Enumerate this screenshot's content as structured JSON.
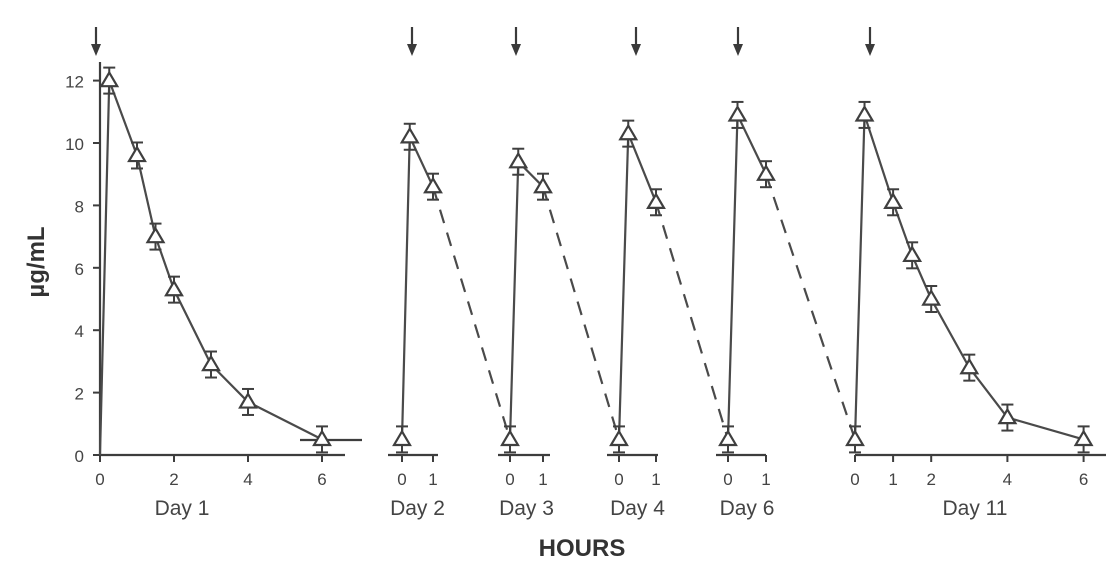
{
  "chart_data": {
    "type": "line",
    "ylabel": "µg/mL",
    "xlabel": "HOURS",
    "ylim": [
      0,
      12.5
    ],
    "yticks": [
      "0",
      "2",
      "4",
      "6",
      "8",
      "10",
      "12"
    ],
    "panels": [
      {
        "label": "Day 1",
        "xticks": [
          "0",
          "2",
          "4",
          "6"
        ],
        "points": [
          {
            "x": 0,
            "y": 0
          },
          {
            "x": 0.25,
            "y": 12.0
          },
          {
            "x": 1,
            "y": 9.6
          },
          {
            "x": 1.5,
            "y": 7.0
          },
          {
            "x": 2,
            "y": 5.3
          },
          {
            "x": 3,
            "y": 2.9
          },
          {
            "x": 4,
            "y": 1.7
          },
          {
            "x": 6,
            "y": 0.5
          }
        ]
      },
      {
        "label": "Day 2",
        "xticks": [
          "0",
          "1"
        ],
        "points": [
          {
            "x": 0,
            "y": 0.5
          },
          {
            "x": 0.25,
            "y": 10.2
          },
          {
            "x": 1,
            "y": 8.6
          }
        ]
      },
      {
        "label": "Day 3",
        "xticks": [
          "0",
          "1"
        ],
        "points": [
          {
            "x": 0,
            "y": 0.5
          },
          {
            "x": 0.25,
            "y": 9.4
          },
          {
            "x": 1,
            "y": 8.6
          }
        ]
      },
      {
        "label": "Day 4",
        "xticks": [
          "0",
          "1"
        ],
        "points": [
          {
            "x": 0,
            "y": 0.5
          },
          {
            "x": 0.25,
            "y": 10.3
          },
          {
            "x": 1,
            "y": 8.1
          }
        ]
      },
      {
        "label": "Day 6",
        "xticks": [
          "0",
          "1"
        ],
        "points": [
          {
            "x": 0,
            "y": 0.5
          },
          {
            "x": 0.25,
            "y": 10.9
          },
          {
            "x": 1,
            "y": 9.0
          }
        ]
      },
      {
        "label": "Day 11",
        "xticks": [
          "0",
          "1",
          "2",
          "4",
          "6"
        ],
        "points": [
          {
            "x": 0,
            "y": 0.5
          },
          {
            "x": 0.25,
            "y": 10.9
          },
          {
            "x": 1,
            "y": 8.1
          },
          {
            "x": 1.5,
            "y": 6.4
          },
          {
            "x": 2,
            "y": 5.0
          },
          {
            "x": 3,
            "y": 2.8
          },
          {
            "x": 4,
            "y": 1.2
          },
          {
            "x": 6,
            "y": 0.5
          }
        ]
      }
    ],
    "colors": {
      "line": "#4a4a4a",
      "marker_stroke": "#3f3f3f",
      "axis": "#3d3d3d"
    }
  }
}
